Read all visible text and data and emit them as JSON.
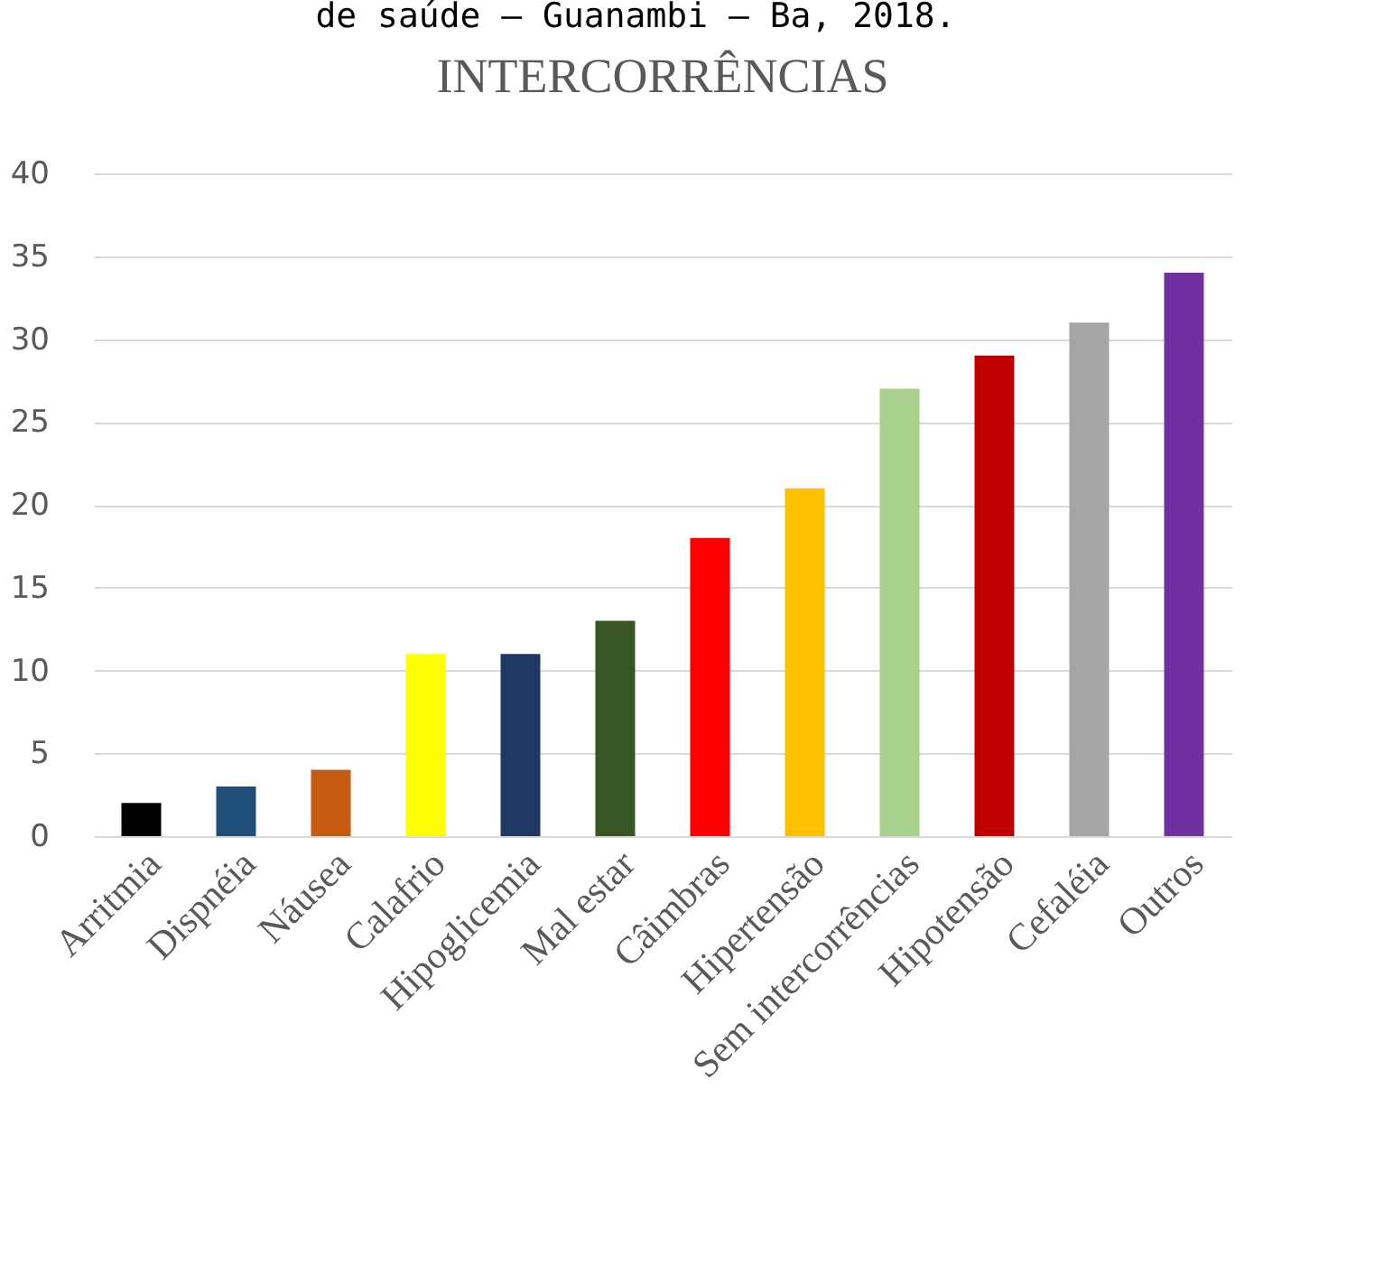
{
  "chart_data": {
    "type": "bar",
    "title": "INTERCORRÊNCIAS",
    "annotations": [
      "de saúde – Guanambi – Ba, 2018."
    ],
    "categories": [
      "Arritmia",
      "Dispnéia",
      "Náusea",
      "Calafrio",
      "Hipoglicemia",
      "Mal estar",
      "Câimbras",
      "Hipertensão",
      "Sem intercorrências",
      "Hipotensão",
      "Cefaléia",
      "Outros"
    ],
    "values": [
      2,
      3,
      4,
      11,
      11,
      13,
      18,
      21,
      27,
      29,
      31,
      34
    ],
    "colors": [
      "#000000",
      "#1f4e79",
      "#c55a11",
      "#ffff00",
      "#203864",
      "#375623",
      "#ff0000",
      "#ffc000",
      "#a9d18e",
      "#c00000",
      "#a5a5a5",
      "#7030a0"
    ],
    "ylim": [
      0,
      40
    ],
    "yticks": [
      0,
      5,
      10,
      15,
      20,
      25,
      30,
      35,
      40
    ],
    "grid": "y"
  }
}
